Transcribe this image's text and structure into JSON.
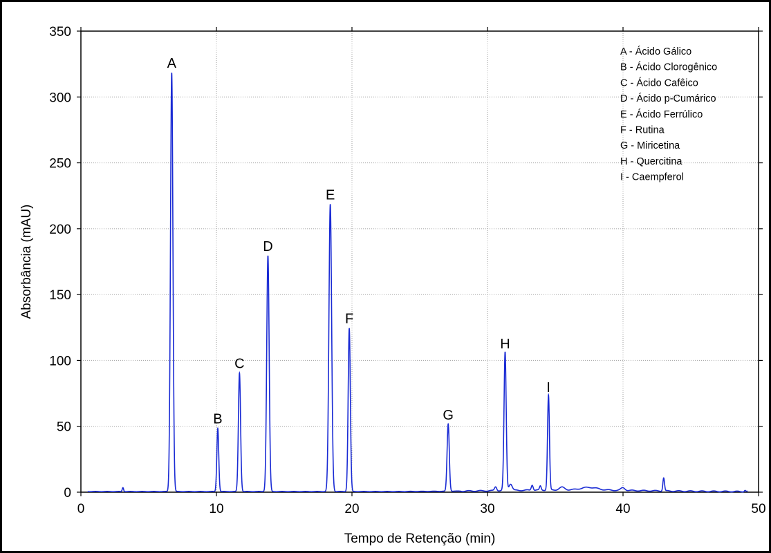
{
  "chart_data": {
    "type": "line",
    "title": "",
    "xlabel": "Tempo de Retenção (min)",
    "ylabel": "Absorbância (mAU)",
    "xlim": [
      0,
      50
    ],
    "ylim": [
      0,
      350
    ],
    "xticks": [
      0,
      10,
      20,
      30,
      40,
      50
    ],
    "yticks": [
      0,
      50,
      100,
      150,
      200,
      250,
      300,
      350
    ],
    "grid": true,
    "legend_position": "top-right",
    "line_color": "#1a2bd4",
    "baseline": 0.5,
    "peaks": [
      {
        "label": "A",
        "x": 6.7,
        "y": 318,
        "width": 0.09
      },
      {
        "label": "B",
        "x": 10.1,
        "y": 48,
        "width": 0.07
      },
      {
        "label": "C",
        "x": 11.7,
        "y": 90,
        "width": 0.08
      },
      {
        "label": "D",
        "x": 13.8,
        "y": 179,
        "width": 0.09
      },
      {
        "label": "E",
        "x": 18.4,
        "y": 218,
        "width": 0.1
      },
      {
        "label": "F",
        "x": 19.8,
        "y": 124,
        "width": 0.08
      },
      {
        "label": "G",
        "x": 27.1,
        "y": 51,
        "width": 0.08
      },
      {
        "label": "H",
        "x": 31.3,
        "y": 105,
        "width": 0.08
      },
      {
        "label": "I",
        "x": 34.5,
        "y": 72,
        "width": 0.07
      }
    ],
    "minor_peaks": [
      {
        "x": 3.1,
        "y": 3,
        "width": 0.05
      },
      {
        "x": 30.6,
        "y": 3,
        "width": 0.08
      },
      {
        "x": 31.7,
        "y": 5,
        "width": 0.12
      },
      {
        "x": 33.3,
        "y": 4,
        "width": 0.07
      },
      {
        "x": 33.9,
        "y": 3,
        "width": 0.06
      },
      {
        "x": 35.5,
        "y": 2,
        "width": 0.2
      },
      {
        "x": 37.5,
        "y": 2,
        "width": 0.6
      },
      {
        "x": 40.0,
        "y": 2,
        "width": 0.15
      },
      {
        "x": 43.0,
        "y": 10,
        "width": 0.06
      },
      {
        "x": 49.0,
        "y": 1,
        "width": 0.05
      }
    ],
    "legend": [
      "A - Ácido Gálico",
      "B - Ácido Clorogênico",
      "C - Ácido Cafêico",
      "D - Ácido p-Cumárico",
      "E - Ácido Ferrúlico",
      "F - Rutina",
      "G - Miricetina",
      "H - Quercitina",
      "I - Caempferol"
    ]
  }
}
